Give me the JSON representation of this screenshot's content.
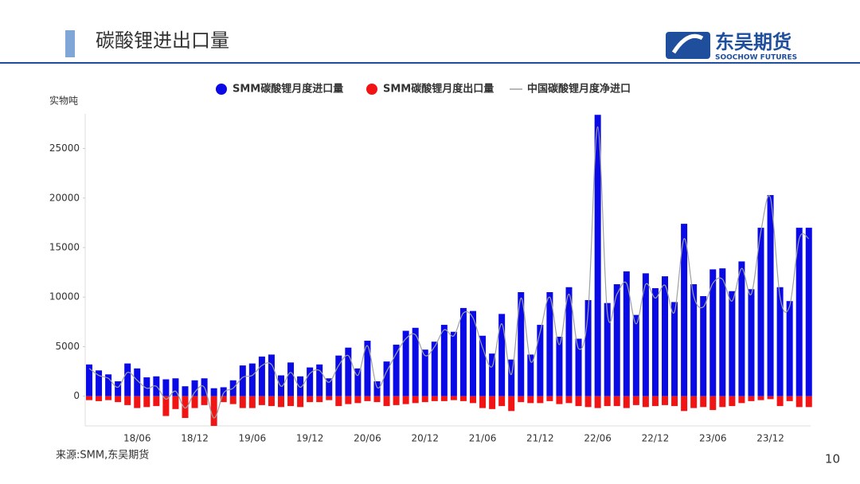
{
  "header": {
    "title": "碳酸锂进出口量",
    "logo_name": "东吴期货",
    "logo_sub": "SOOCHOW FUTURES"
  },
  "chart_data": {
    "type": "bar",
    "y_unit": "实物吨",
    "categories": [
      null,
      null,
      null,
      null,
      null,
      "18/06",
      null,
      null,
      null,
      null,
      null,
      "18/12",
      null,
      null,
      null,
      null,
      null,
      "19/06",
      null,
      null,
      null,
      null,
      null,
      "19/12",
      null,
      null,
      null,
      null,
      null,
      "20/06",
      null,
      null,
      null,
      null,
      null,
      "20/12",
      null,
      null,
      null,
      null,
      null,
      "21/06",
      null,
      null,
      null,
      null,
      null,
      "21/12",
      null,
      null,
      null,
      null,
      null,
      "22/06",
      null,
      null,
      null,
      null,
      null,
      "22/12",
      null,
      null,
      null,
      null,
      null,
      "23/06",
      null,
      null,
      null,
      null,
      null,
      "23/12",
      null,
      null,
      null,
      null
    ],
    "series": [
      {
        "name": "SMM碳酸锂月度进口量",
        "color": "#0a0ae6",
        "kind": "bar",
        "values": [
          3200,
          2600,
          2200,
          1500,
          3300,
          2800,
          1900,
          2000,
          1700,
          1800,
          1000,
          1600,
          1800,
          800,
          900,
          1600,
          3100,
          3300,
          4000,
          4200,
          2100,
          3400,
          2000,
          2900,
          3200,
          1800,
          4100,
          4900,
          2800,
          5600,
          1500,
          3500,
          5200,
          6600,
          6900,
          4700,
          5500,
          7200,
          6500,
          8900,
          8600,
          6100,
          4300,
          8300,
          3700,
          10500,
          4200,
          7200,
          10500,
          6000,
          11000,
          5800,
          9700,
          28400,
          9400,
          11300,
          12600,
          8200,
          12400,
          10900,
          12100,
          9500,
          17400,
          11300,
          10100,
          12800,
          12900,
          10600,
          13600,
          10800,
          17000,
          20300,
          11000,
          9600,
          17000,
          17000
        ]
      },
      {
        "name": "SMM碳酸锂月度出口量",
        "color": "#f01414",
        "kind": "bar",
        "values": [
          -400,
          -500,
          -400,
          -600,
          -900,
          -1200,
          -1100,
          -1000,
          -2000,
          -1300,
          -2200,
          -1200,
          -900,
          -3000,
          -600,
          -800,
          -1200,
          -1200,
          -900,
          -1000,
          -1100,
          -1000,
          -1100,
          -600,
          -600,
          -400,
          -1000,
          -800,
          -700,
          -500,
          -600,
          -1000,
          -900,
          -800,
          -700,
          -600,
          -500,
          -500,
          -400,
          -500,
          -700,
          -1200,
          -1300,
          -1000,
          -1500,
          -600,
          -700,
          -700,
          -500,
          -800,
          -700,
          -1000,
          -1100,
          -1200,
          -1000,
          -1000,
          -1200,
          -900,
          -1100,
          -1000,
          -900,
          -1000,
          -1500,
          -1200,
          -1100,
          -1400,
          -1100,
          -1000,
          -700,
          -500,
          -400,
          -300,
          -1000,
          -500,
          -1100,
          -1100
        ]
      },
      {
        "name": "中国碳酸锂月度净进口",
        "color": "#a0a0a0",
        "kind": "line",
        "values": [
          2800,
          2100,
          1800,
          900,
          2400,
          1600,
          800,
          1000,
          -300,
          500,
          -1200,
          400,
          900,
          -2200,
          300,
          800,
          1900,
          2100,
          3100,
          3200,
          1000,
          2400,
          900,
          2300,
          2600,
          1400,
          3100,
          4100,
          2100,
          5100,
          900,
          2500,
          4300,
          5800,
          6200,
          4100,
          5000,
          6700,
          6100,
          8400,
          7900,
          4900,
          3000,
          7300,
          2200,
          9900,
          3500,
          6500,
          10000,
          5200,
          10300,
          4800,
          8600,
          27200,
          8400,
          10300,
          11400,
          7300,
          11300,
          9900,
          11200,
          8500,
          15900,
          10100,
          9000,
          11400,
          11800,
          9600,
          12900,
          10300,
          16600,
          20000,
          10000,
          9100,
          15900,
          15900
        ]
      }
    ],
    "ylim": [
      -3000,
      28500
    ],
    "yticks": [
      0,
      5000,
      10000,
      15000,
      20000,
      25000
    ]
  },
  "footer": {
    "source": "来源:SMM,东吴期货",
    "page": "10"
  }
}
